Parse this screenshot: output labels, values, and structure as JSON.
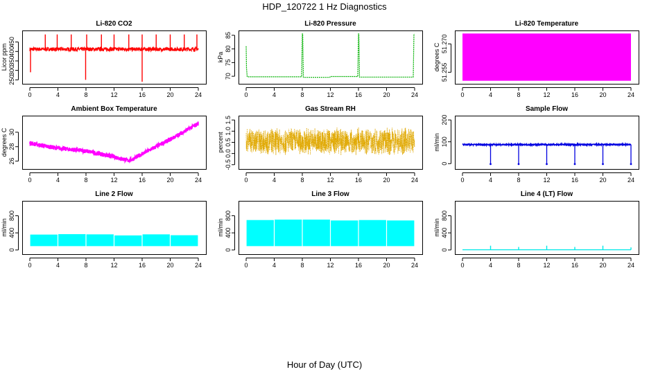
{
  "page_title": "HDP_120722 1 Hz Diagnostics",
  "x_axis_label": "Hour of Day (UTC)",
  "chart_data": [
    {
      "type": "line",
      "title": "Li-820 CO2",
      "ylabel": "Licor ppm",
      "color": "#ff0000",
      "xlim": [
        0,
        24
      ],
      "ylim": [
        240,
        500
      ],
      "xticks": [
        0,
        4,
        8,
        12,
        16,
        20,
        24
      ],
      "yticks": [
        250,
        300,
        350,
        400,
        450
      ],
      "baseline": 412,
      "noise": 10,
      "spikes_up": [
        {
          "x": 2.2,
          "y": 490
        },
        {
          "x": 3.9,
          "y": 490
        },
        {
          "x": 5.9,
          "y": 490
        },
        {
          "x": 8.1,
          "y": 490
        },
        {
          "x": 10.2,
          "y": 490
        },
        {
          "x": 12.0,
          "y": 490
        },
        {
          "x": 14.1,
          "y": 490
        },
        {
          "x": 16.0,
          "y": 490
        },
        {
          "x": 18.0,
          "y": 490
        },
        {
          "x": 20.0,
          "y": 490
        },
        {
          "x": 22.0,
          "y": 490
        },
        {
          "x": 23.8,
          "y": 490
        }
      ],
      "spikes_down": [
        {
          "x": 0.1,
          "y": 290
        },
        {
          "x": 7.95,
          "y": 250
        },
        {
          "x": 16.0,
          "y": 240
        }
      ]
    },
    {
      "type": "line",
      "title": "Li-820 Pressure",
      "ylabel": "kPa",
      "color": "#00b000",
      "xlim": [
        0,
        24
      ],
      "ylim": [
        68,
        86
      ],
      "xticks": [
        0,
        4,
        8,
        12,
        16,
        20,
        24
      ],
      "yticks": [
        70,
        75,
        80,
        85
      ],
      "series": [
        {
          "name": "pressure",
          "x": [
            0,
            0.05,
            0.15,
            0.3,
            7.9,
            8.0,
            8.05,
            8.15,
            11.9,
            12.0,
            15.9,
            16.0,
            16.05,
            16.15,
            23.8,
            23.9,
            23.95
          ],
          "y": [
            81,
            73,
            69.9,
            69.8,
            69.8,
            85.5,
            85.5,
            69.6,
            69.6,
            69.9,
            69.9,
            85.5,
            85.5,
            69.7,
            69.7,
            85.5,
            85.5
          ]
        }
      ]
    },
    {
      "type": "area",
      "title": "Li-820 Temperature",
      "ylabel": "degrees C",
      "color": "#ff00ff",
      "xlim": [
        0,
        24
      ],
      "ylim": [
        51.25,
        51.276
      ],
      "xticks": [
        0,
        4,
        8,
        12,
        16,
        20,
        24
      ],
      "yticks": [
        51.255,
        51.27
      ],
      "ytick_labels": [
        "51.255",
        "51.270"
      ],
      "band": [
        51.2505,
        51.2755
      ]
    },
    {
      "type": "line",
      "title": "Ambient Box Temperature",
      "ylabel": "degrees C",
      "color": "#ff00ff",
      "xlim": [
        0,
        24
      ],
      "ylim": [
        25.2,
        32
      ],
      "xticks": [
        0,
        4,
        8,
        12,
        16,
        20,
        24
      ],
      "yticks": [
        26,
        28,
        30
      ],
      "noise": 0.3,
      "series": [
        {
          "name": "box_temp",
          "x": [
            0,
            2,
            4,
            6,
            8,
            10,
            12,
            14,
            14.5,
            16,
            18,
            20,
            22,
            24
          ],
          "y": [
            28.5,
            28.1,
            27.8,
            27.6,
            27.4,
            27.0,
            26.6,
            26.1,
            26.2,
            27.0,
            28.0,
            29.0,
            30.1,
            31.2
          ]
        }
      ]
    },
    {
      "type": "scatter",
      "title": "Gas Stream RH",
      "ylabel": "percent",
      "color": "#e0a800",
      "xlim": [
        0,
        24
      ],
      "ylim": [
        -0.6,
        1.6
      ],
      "xticks": [
        0,
        4,
        8,
        12,
        16,
        20,
        24
      ],
      "yticks": [
        -0.5,
        0.0,
        0.5,
        1.0,
        1.5
      ],
      "ytick_labels": [
        "-0.5",
        "0.0",
        "0.5",
        "1.0",
        "1.5"
      ],
      "center": 0.55,
      "spread": 0.65
    },
    {
      "type": "line",
      "title": "Sample Flow",
      "ylabel": "ml/min",
      "color": "#0000e0",
      "xlim": [
        0,
        24
      ],
      "ylim": [
        -15,
        210
      ],
      "xticks": [
        0,
        4,
        8,
        12,
        16,
        20,
        24
      ],
      "yticks": [
        0,
        100,
        200
      ],
      "baseline": 87,
      "noise": 3,
      "dips": [
        4,
        8,
        12,
        16,
        20,
        24
      ],
      "dip_value": -2
    },
    {
      "type": "area",
      "title": "Line 2 Flow",
      "ylabel": "ml/min",
      "color": "#00ffff",
      "xlim": [
        0,
        24
      ],
      "ylim": [
        -50,
        1100
      ],
      "xticks": [
        0,
        4,
        8,
        12,
        16,
        20,
        24
      ],
      "yticks": [
        0,
        400,
        800
      ],
      "bands": [
        {
          "x0": 0,
          "x1": 4,
          "low": 90,
          "high": 360
        },
        {
          "x0": 4,
          "x1": 8,
          "low": 90,
          "high": 370
        },
        {
          "x0": 8,
          "x1": 12,
          "low": 90,
          "high": 365
        },
        {
          "x0": 12,
          "x1": 16,
          "low": 90,
          "high": 340
        },
        {
          "x0": 16,
          "x1": 20,
          "low": 90,
          "high": 365
        },
        {
          "x0": 20,
          "x1": 24,
          "low": 90,
          "high": 345
        }
      ]
    },
    {
      "type": "area",
      "title": "Line 3 Flow",
      "ylabel": "ml/min",
      "color": "#00ffff",
      "xlim": [
        0,
        24
      ],
      "ylim": [
        -50,
        1100
      ],
      "xticks": [
        0,
        4,
        8,
        12,
        16,
        20,
        24
      ],
      "yticks": [
        0,
        400,
        800
      ],
      "bands": [
        {
          "x0": 0,
          "x1": 4,
          "low": 90,
          "high": 700
        },
        {
          "x0": 4,
          "x1": 8,
          "low": 90,
          "high": 710
        },
        {
          "x0": 8,
          "x1": 12,
          "low": 90,
          "high": 710
        },
        {
          "x0": 12,
          "x1": 16,
          "low": 90,
          "high": 690
        },
        {
          "x0": 16,
          "x1": 20,
          "low": 90,
          "high": 700
        },
        {
          "x0": 20,
          "x1": 24,
          "low": 90,
          "high": 690
        }
      ]
    },
    {
      "type": "line",
      "title": "Line 4 (LT) Flow",
      "ylabel": "ml/min",
      "color": "#00e8e8",
      "xlim": [
        0,
        24
      ],
      "ylim": [
        -50,
        1100
      ],
      "xticks": [
        0,
        4,
        8,
        12,
        16,
        20,
        24
      ],
      "yticks": [
        0,
        400,
        800
      ],
      "baseline": 5,
      "spikes_up": [
        {
          "x": 4,
          "y": 100
        },
        {
          "x": 8,
          "y": 70
        },
        {
          "x": 12,
          "y": 100
        },
        {
          "x": 16,
          "y": 70
        },
        {
          "x": 20,
          "y": 100
        },
        {
          "x": 24,
          "y": 60
        }
      ]
    }
  ]
}
